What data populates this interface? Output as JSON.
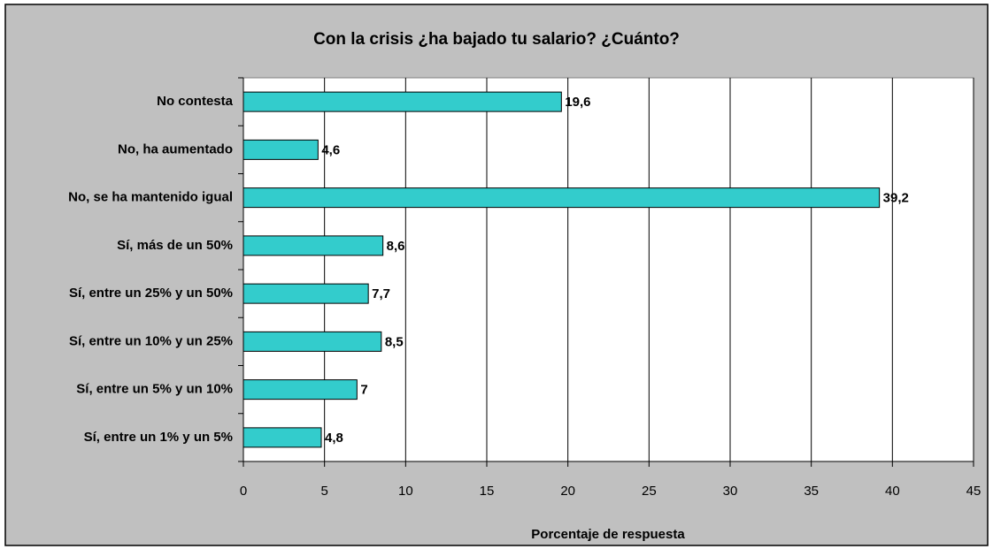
{
  "chart_data": {
    "type": "bar",
    "orientation": "horizontal",
    "title": "Con la crisis ¿ha bajado tu salario? ¿Cuánto?",
    "x_label": "Porcentaje de respuesta",
    "categories": [
      "No contesta",
      "No, ha aumentado",
      "No, se ha mantenido igual",
      "Sí, más de un 50%",
      "Sí, entre un 25% y un 50%",
      "Sí, entre un 10% y un 25%",
      "Sí, entre un 5% y un 10%",
      "Sí, entre un 1% y un 5%"
    ],
    "values": [
      19.6,
      4.6,
      39.2,
      8.6,
      7.7,
      8.5,
      7,
      4.8
    ],
    "value_labels": [
      "19,6",
      "4,6",
      "39,2",
      "8,6",
      "7,7",
      "8,5",
      "7",
      "4,8"
    ],
    "color": "#33cccc",
    "xlim": [
      0,
      45
    ],
    "xticks": [
      0,
      5,
      10,
      15,
      20,
      25,
      30,
      35,
      40,
      45
    ],
    "grid": true
  }
}
